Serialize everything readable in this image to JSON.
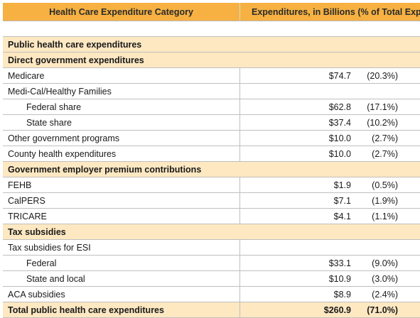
{
  "header": {
    "category": "Health Care Expenditure Category",
    "expenditures": "Expenditures, in Billions (% of Total Expe"
  },
  "sections": {
    "public": "Public health care expenditures",
    "direct": "Direct government expenditures",
    "employer": "Government employer premium contributions",
    "tax": "Tax subsidies"
  },
  "rows": {
    "medicare": {
      "label": "Medicare",
      "amount": "$74.7",
      "pct": "(20.3%)"
    },
    "medical": {
      "label": "Medi-Cal/Healthy Families"
    },
    "federal_share": {
      "label": "Federal share",
      "amount": "$62.8",
      "pct": "(17.1%)"
    },
    "state_share": {
      "label": "State share",
      "amount": "$37.4",
      "pct": "(10.2%)"
    },
    "other_gov": {
      "label": "Other government programs",
      "amount": "$10.0",
      "pct": "(2.7%)"
    },
    "county": {
      "label": "County health expenditures",
      "amount": "$10.0",
      "pct": "(2.7%)"
    },
    "fehb": {
      "label": "FEHB",
      "amount": "$1.9",
      "pct": "(0.5%)"
    },
    "calpers": {
      "label": "CalPERS",
      "amount": "$7.1",
      "pct": "(1.9%)"
    },
    "tricare": {
      "label": "TRICARE",
      "amount": "$4.1",
      "pct": "(1.1%)"
    },
    "esi": {
      "label": "Tax subsidies for ESI"
    },
    "esi_federal": {
      "label": "Federal",
      "amount": "$33.1",
      "pct": "(9.0%)"
    },
    "esi_state": {
      "label": "State and local",
      "amount": "$10.9",
      "pct": "(3.0%)"
    },
    "aca": {
      "label": "ACA subsidies",
      "amount": "$8.9",
      "pct": "(2.4%)"
    }
  },
  "total": {
    "label": "Total public health care expenditures",
    "amount": "$260.9",
    "pct": "(71.0%)"
  },
  "colors": {
    "header_bg": "#f6b142",
    "band_bg": "#fde8c2",
    "grid": "#bfbfbf"
  }
}
